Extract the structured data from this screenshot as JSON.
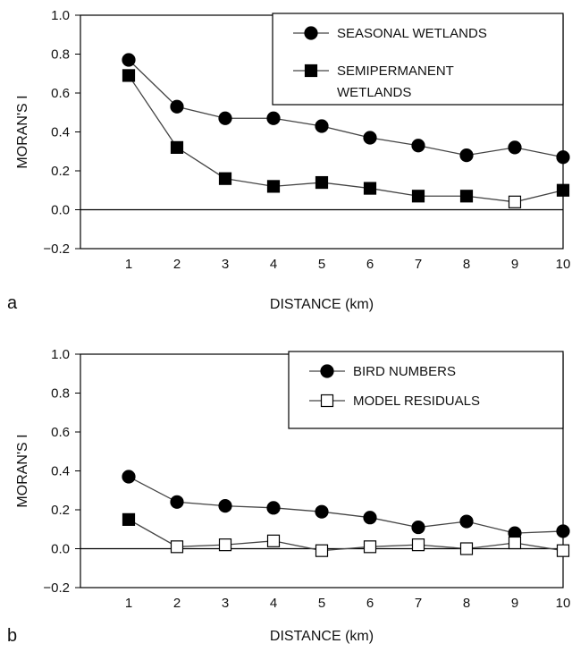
{
  "chart_data": [
    {
      "type": "line",
      "panel_label": "a",
      "xlabel": "DISTANCE (km)",
      "ylabel": "MORAN'S I",
      "x": [
        1,
        2,
        3,
        4,
        5,
        6,
        7,
        8,
        9,
        10
      ],
      "xlim": [
        0,
        10
      ],
      "ylim": [
        -0.2,
        1.0
      ],
      "yticks": [
        "1.0",
        "0.8",
        "0.6",
        "0.4",
        "0.2",
        "0.0",
        "−0.2"
      ],
      "xticks": [
        "1",
        "2",
        "3",
        "4",
        "5",
        "6",
        "7",
        "8",
        "9",
        "10"
      ],
      "grid": false,
      "legend_position": "top-right",
      "series": [
        {
          "name": "SEASONAL WETLANDS",
          "marker": "circle",
          "values": [
            0.77,
            0.53,
            0.47,
            0.47,
            0.43,
            0.37,
            0.33,
            0.28,
            0.32,
            0.27
          ],
          "open": [
            false,
            false,
            false,
            false,
            false,
            false,
            false,
            false,
            false,
            false
          ]
        },
        {
          "name": "SEMIPERMANENT WETLANDS",
          "legend_lines": [
            "SEMIPERMANENT",
            "WETLANDS"
          ],
          "marker": "square",
          "values": [
            0.69,
            0.32,
            0.16,
            0.12,
            0.14,
            0.11,
            0.07,
            0.07,
            0.04,
            0.1
          ],
          "open": [
            false,
            false,
            false,
            false,
            false,
            false,
            false,
            false,
            true,
            false
          ]
        }
      ]
    },
    {
      "type": "line",
      "panel_label": "b",
      "xlabel": "DISTANCE (km)",
      "ylabel": "MORAN'S I",
      "x": [
        1,
        2,
        3,
        4,
        5,
        6,
        7,
        8,
        9,
        10
      ],
      "xlim": [
        0,
        10
      ],
      "ylim": [
        -0.2,
        1.0
      ],
      "yticks": [
        "1.0",
        "0.8",
        "0.6",
        "0.4",
        "0.2",
        "0.0",
        "−0.2"
      ],
      "xticks": [
        "1",
        "2",
        "3",
        "4",
        "5",
        "6",
        "7",
        "8",
        "9",
        "10"
      ],
      "grid": false,
      "legend_position": "top-right",
      "series": [
        {
          "name": "BIRD NUMBERS",
          "marker": "circle",
          "values": [
            0.37,
            0.24,
            0.22,
            0.21,
            0.19,
            0.16,
            0.11,
            0.14,
            0.08,
            0.09
          ],
          "open": [
            false,
            false,
            false,
            false,
            false,
            false,
            false,
            false,
            false,
            false
          ]
        },
        {
          "name": "MODEL RESIDUALS",
          "marker": "square",
          "values": [
            0.15,
            0.01,
            0.02,
            0.04,
            -0.01,
            0.01,
            0.02,
            0.0,
            0.03,
            -0.01
          ],
          "open": [
            false,
            true,
            true,
            true,
            true,
            true,
            true,
            true,
            true,
            true
          ]
        }
      ]
    }
  ]
}
